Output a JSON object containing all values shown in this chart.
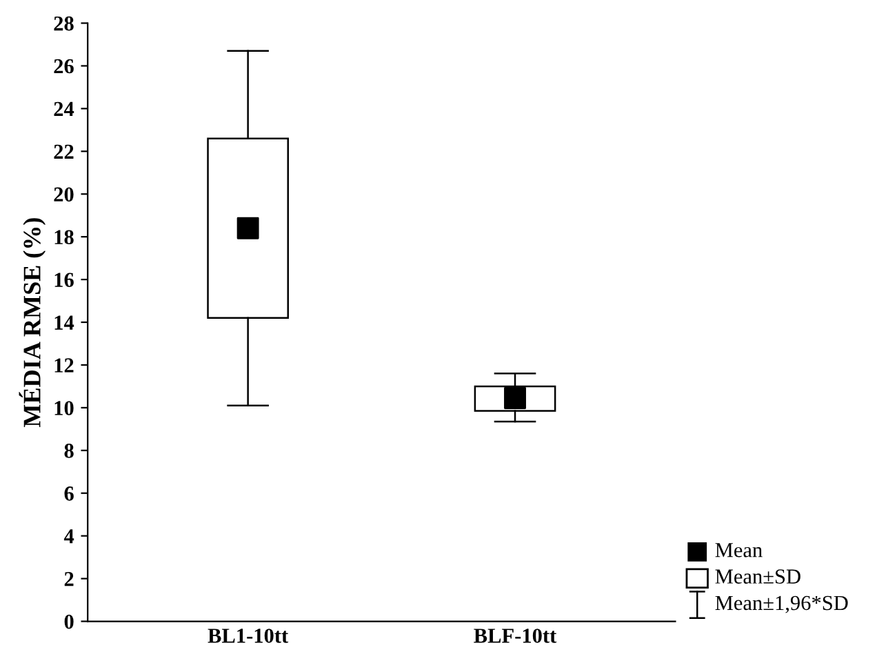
{
  "chart_data": {
    "type": "box",
    "ylabel": "MÉDIA RMSE (%)",
    "categories": [
      "BL1-10tt",
      "BLF-10tt"
    ],
    "boxes": [
      {
        "low": 10.1,
        "q1": 14.2,
        "median": 18.4,
        "q3": 22.6,
        "high": 26.7
      },
      {
        "low": 9.35,
        "q1": 9.85,
        "median": 10.45,
        "q3": 11.0,
        "high": 11.6
      }
    ],
    "annotations": [
      "Mean",
      "Mean±SD",
      "Mean±1,96*SD"
    ],
    "ylim": [
      0,
      28
    ],
    "yticks": [
      0,
      2,
      4,
      6,
      8,
      10,
      12,
      14,
      16,
      18,
      20,
      22,
      24,
      26,
      28
    ],
    "marker": "square",
    "grid": false
  }
}
